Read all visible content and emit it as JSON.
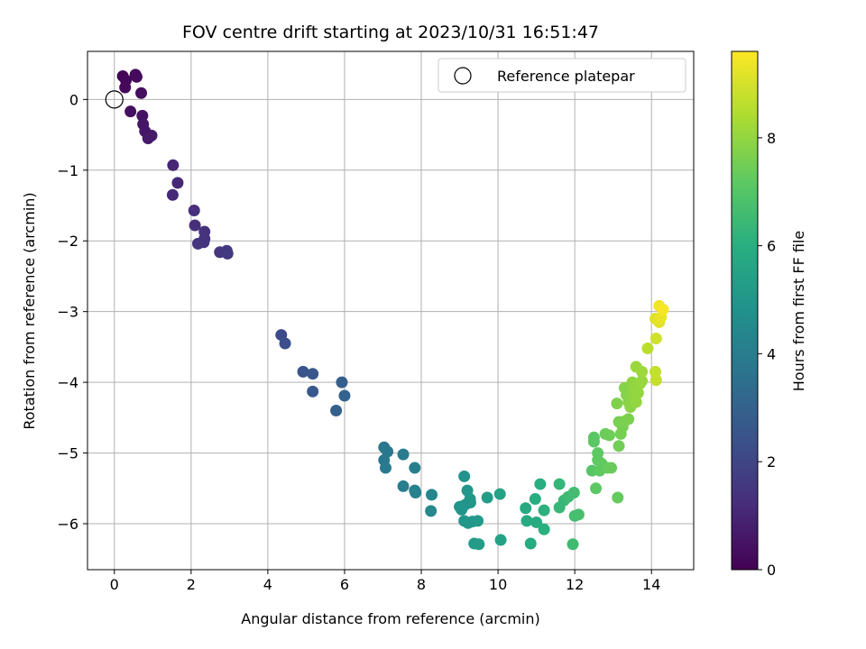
{
  "chart_data": {
    "type": "scatter",
    "title": "FOV centre drift starting at 2023/10/31 16:51:47",
    "xlabel": "Angular distance from reference (arcmin)",
    "ylabel": "Rotation from reference (arcmin)",
    "xlim": [
      -0.7,
      15.1
    ],
    "ylim": [
      -6.65,
      0.68
    ],
    "xticks": [
      0,
      2,
      4,
      6,
      8,
      10,
      12,
      14
    ],
    "yticks": [
      0,
      -1,
      -2,
      -3,
      -4,
      -5,
      -6
    ],
    "grid": true,
    "legend": {
      "position": "upper right",
      "entries": [
        "Reference platepar"
      ]
    },
    "reference_point": {
      "x": 0,
      "y": 0
    },
    "colorbar": {
      "label": "Hours from first FF file",
      "range": [
        0,
        9.6
      ],
      "ticks": [
        0,
        2,
        4,
        6,
        8
      ],
      "colormap": "viridis"
    },
    "points": [
      {
        "x": 0.22,
        "y": 0.33,
        "c": 0.1
      },
      {
        "x": 0.55,
        "y": 0.35,
        "c": 0.2
      },
      {
        "x": 0.58,
        "y": 0.32,
        "c": 0.25
      },
      {
        "x": 0.3,
        "y": 0.27,
        "c": 0.15
      },
      {
        "x": 0.28,
        "y": 0.17,
        "c": 0.2
      },
      {
        "x": 0.7,
        "y": 0.09,
        "c": 0.35
      },
      {
        "x": 0.42,
        "y": -0.17,
        "c": 0.4
      },
      {
        "x": 0.73,
        "y": -0.23,
        "c": 0.5
      },
      {
        "x": 0.75,
        "y": -0.35,
        "c": 0.55
      },
      {
        "x": 0.8,
        "y": -0.45,
        "c": 0.6
      },
      {
        "x": 0.97,
        "y": -0.51,
        "c": 0.7
      },
      {
        "x": 0.88,
        "y": -0.55,
        "c": 0.65
      },
      {
        "x": 1.53,
        "y": -0.93,
        "c": 1.0
      },
      {
        "x": 1.65,
        "y": -1.18,
        "c": 1.05
      },
      {
        "x": 1.52,
        "y": -1.35,
        "c": 1.1
      },
      {
        "x": 2.08,
        "y": -1.57,
        "c": 1.25
      },
      {
        "x": 2.1,
        "y": -1.78,
        "c": 1.3
      },
      {
        "x": 2.35,
        "y": -1.87,
        "c": 1.35
      },
      {
        "x": 2.35,
        "y": -1.97,
        "c": 1.38
      },
      {
        "x": 2.33,
        "y": -2.02,
        "c": 1.4
      },
      {
        "x": 2.18,
        "y": -2.04,
        "c": 1.42
      },
      {
        "x": 2.75,
        "y": -2.16,
        "c": 1.5
      },
      {
        "x": 2.93,
        "y": -2.14,
        "c": 1.55
      },
      {
        "x": 2.95,
        "y": -2.18,
        "c": 1.6
      },
      {
        "x": 4.35,
        "y": -3.33,
        "c": 2.2
      },
      {
        "x": 4.45,
        "y": -3.45,
        "c": 2.3
      },
      {
        "x": 4.92,
        "y": -3.85,
        "c": 2.5
      },
      {
        "x": 5.17,
        "y": -3.88,
        "c": 2.6
      },
      {
        "x": 5.93,
        "y": -4.0,
        "c": 2.9
      },
      {
        "x": 5.17,
        "y": -4.13,
        "c": 2.65
      },
      {
        "x": 6.0,
        "y": -4.19,
        "c": 3.0
      },
      {
        "x": 5.78,
        "y": -4.4,
        "c": 2.95
      },
      {
        "x": 7.03,
        "y": -4.92,
        "c": 3.8
      },
      {
        "x": 7.12,
        "y": -4.98,
        "c": 3.85
      },
      {
        "x": 7.53,
        "y": -5.02,
        "c": 4.0
      },
      {
        "x": 7.03,
        "y": -5.1,
        "c": 3.82
      },
      {
        "x": 7.07,
        "y": -5.21,
        "c": 3.9
      },
      {
        "x": 7.83,
        "y": -5.21,
        "c": 4.1
      },
      {
        "x": 7.53,
        "y": -5.47,
        "c": 4.05
      },
      {
        "x": 7.83,
        "y": -5.53,
        "c": 4.15
      },
      {
        "x": 7.85,
        "y": -5.56,
        "c": 4.2
      },
      {
        "x": 8.27,
        "y": -5.59,
        "c": 4.4
      },
      {
        "x": 8.25,
        "y": -5.82,
        "c": 4.45
      },
      {
        "x": 9.12,
        "y": -5.33,
        "c": 4.9
      },
      {
        "x": 9.2,
        "y": -5.53,
        "c": 5.0
      },
      {
        "x": 9.27,
        "y": -5.65,
        "c": 5.05
      },
      {
        "x": 9.28,
        "y": -5.7,
        "c": 5.1
      },
      {
        "x": 9.0,
        "y": -5.76,
        "c": 4.95
      },
      {
        "x": 9.05,
        "y": -5.8,
        "c": 4.98
      },
      {
        "x": 9.15,
        "y": -5.73,
        "c": 5.02
      },
      {
        "x": 9.72,
        "y": -5.63,
        "c": 5.3
      },
      {
        "x": 10.05,
        "y": -5.58,
        "c": 5.45
      },
      {
        "x": 9.12,
        "y": -5.96,
        "c": 5.0
      },
      {
        "x": 9.33,
        "y": -5.97,
        "c": 5.08
      },
      {
        "x": 9.47,
        "y": -5.96,
        "c": 5.15
      },
      {
        "x": 9.22,
        "y": -5.99,
        "c": 5.05
      },
      {
        "x": 9.38,
        "y": -6.28,
        "c": 5.2
      },
      {
        "x": 9.5,
        "y": -6.29,
        "c": 5.25
      },
      {
        "x": 10.07,
        "y": -6.23,
        "c": 5.5
      },
      {
        "x": 10.72,
        "y": -5.78,
        "c": 5.8
      },
      {
        "x": 11.1,
        "y": -5.44,
        "c": 6.0
      },
      {
        "x": 10.97,
        "y": -5.65,
        "c": 5.95
      },
      {
        "x": 11.2,
        "y": -5.81,
        "c": 6.1
      },
      {
        "x": 10.75,
        "y": -5.96,
        "c": 5.85
      },
      {
        "x": 11.0,
        "y": -5.98,
        "c": 5.9
      },
      {
        "x": 11.2,
        "y": -6.08,
        "c": 6.05
      },
      {
        "x": 10.85,
        "y": -6.28,
        "c": 5.88
      },
      {
        "x": 11.6,
        "y": -5.44,
        "c": 6.3
      },
      {
        "x": 11.72,
        "y": -5.67,
        "c": 6.4
      },
      {
        "x": 11.6,
        "y": -5.77,
        "c": 6.35
      },
      {
        "x": 11.83,
        "y": -5.62,
        "c": 6.5
      },
      {
        "x": 11.98,
        "y": -5.56,
        "c": 6.6
      },
      {
        "x": 12.0,
        "y": -5.89,
        "c": 6.65
      },
      {
        "x": 12.1,
        "y": -5.87,
        "c": 6.7
      },
      {
        "x": 11.95,
        "y": -6.29,
        "c": 6.55
      },
      {
        "x": 12.45,
        "y": -5.25,
        "c": 7.0
      },
      {
        "x": 12.5,
        "y": -4.78,
        "c": 7.1
      },
      {
        "x": 12.5,
        "y": -4.84,
        "c": 7.12
      },
      {
        "x": 12.6,
        "y": -5.0,
        "c": 7.18
      },
      {
        "x": 12.6,
        "y": -5.1,
        "c": 7.2
      },
      {
        "x": 12.7,
        "y": -5.15,
        "c": 7.25
      },
      {
        "x": 12.65,
        "y": -5.25,
        "c": 7.22
      },
      {
        "x": 12.55,
        "y": -5.5,
        "c": 7.15
      },
      {
        "x": 12.85,
        "y": -5.21,
        "c": 7.3
      },
      {
        "x": 12.95,
        "y": -5.21,
        "c": 7.35
      },
      {
        "x": 12.8,
        "y": -4.73,
        "c": 7.4
      },
      {
        "x": 12.9,
        "y": -4.75,
        "c": 7.45
      },
      {
        "x": 13.12,
        "y": -5.63,
        "c": 7.3
      },
      {
        "x": 13.15,
        "y": -4.9,
        "c": 7.5
      },
      {
        "x": 13.2,
        "y": -4.73,
        "c": 7.55
      },
      {
        "x": 13.25,
        "y": -4.63,
        "c": 7.58
      },
      {
        "x": 13.15,
        "y": -4.56,
        "c": 7.6
      },
      {
        "x": 13.3,
        "y": -4.55,
        "c": 7.62
      },
      {
        "x": 13.4,
        "y": -4.52,
        "c": 7.65
      },
      {
        "x": 13.1,
        "y": -4.3,
        "c": 7.7
      },
      {
        "x": 13.3,
        "y": -4.08,
        "c": 7.8
      },
      {
        "x": 13.35,
        "y": -4.18,
        "c": 7.82
      },
      {
        "x": 13.4,
        "y": -4.28,
        "c": 7.85
      },
      {
        "x": 13.45,
        "y": -4.35,
        "c": 7.88
      },
      {
        "x": 13.5,
        "y": -4.2,
        "c": 7.9
      },
      {
        "x": 13.5,
        "y": -4.0,
        "c": 7.95
      },
      {
        "x": 13.55,
        "y": -4.1,
        "c": 7.97
      },
      {
        "x": 13.6,
        "y": -4.28,
        "c": 8.0
      },
      {
        "x": 13.65,
        "y": -4.15,
        "c": 8.02
      },
      {
        "x": 13.7,
        "y": -4.02,
        "c": 8.05
      },
      {
        "x": 13.75,
        "y": -3.98,
        "c": 8.08
      },
      {
        "x": 13.6,
        "y": -3.78,
        "c": 8.1
      },
      {
        "x": 13.75,
        "y": -3.85,
        "c": 8.15
      },
      {
        "x": 13.9,
        "y": -3.52,
        "c": 8.6
      },
      {
        "x": 14.1,
        "y": -3.85,
        "c": 8.7
      },
      {
        "x": 14.12,
        "y": -3.97,
        "c": 8.75
      },
      {
        "x": 14.12,
        "y": -3.38,
        "c": 8.9
      },
      {
        "x": 14.1,
        "y": -3.1,
        "c": 9.1
      },
      {
        "x": 14.2,
        "y": -3.15,
        "c": 9.2
      },
      {
        "x": 14.25,
        "y": -3.08,
        "c": 9.3
      },
      {
        "x": 14.2,
        "y": -2.92,
        "c": 9.4
      },
      {
        "x": 14.3,
        "y": -2.97,
        "c": 9.5
      }
    ]
  }
}
